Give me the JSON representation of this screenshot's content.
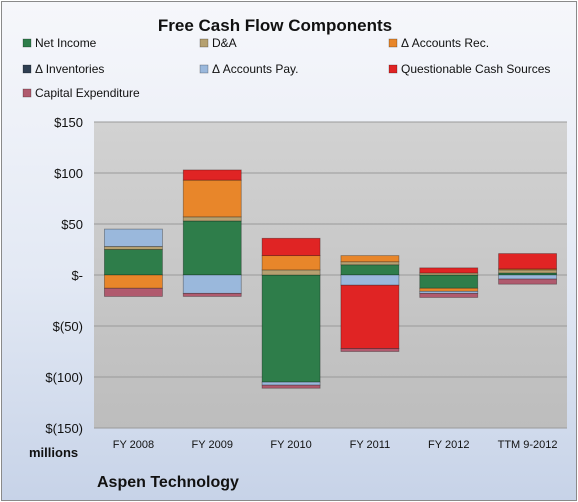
{
  "chart_data": {
    "type": "bar",
    "stacked": true,
    "title": "Free Cash Flow Components",
    "subtitle": "",
    "company": "Aspen Technology",
    "unit_label": "millions",
    "categories": [
      "FY 2008",
      "FY 2009",
      "FY 2010",
      "FY 2011",
      "FY 2012",
      "TTM 9-2012"
    ],
    "ylim": [
      -150,
      150
    ],
    "yticks": [
      150,
      100,
      50,
      0,
      -50,
      -100,
      -150
    ],
    "ytick_labels": [
      "$150",
      "$100",
      "$50",
      "$-",
      "$(50)",
      "$(100)",
      "$(150)"
    ],
    "grid": true,
    "legend_position": "top",
    "series": [
      {
        "name": "Net Income",
        "color": "#2e7d4a",
        "values": [
          25,
          53,
          -105,
          10,
          -13,
          2
        ]
      },
      {
        "name": "D&A",
        "color": "#b5a070",
        "values": [
          3,
          4,
          5,
          3,
          2,
          3
        ]
      },
      {
        "name": "Δ Accounts Rec.",
        "color": "#e8862a",
        "values": [
          -13,
          36,
          14,
          6,
          -3,
          1
        ]
      },
      {
        "name": "Δ Inventories",
        "color": "#2f3f52",
        "values": [
          0,
          0,
          0,
          0,
          0,
          0
        ]
      },
      {
        "name": "Δ Accounts Pay.",
        "color": "#9ab8dc",
        "values": [
          17,
          -18,
          -3,
          -10,
          -2,
          -4
        ]
      },
      {
        "name": "Questionable Cash Sources",
        "color": "#e02424",
        "values": [
          0,
          10,
          17,
          -62,
          5,
          15
        ]
      },
      {
        "name": "Capital Expenditure",
        "color": "#b05a6e",
        "values": [
          -8,
          -3,
          -3,
          -3,
          -4,
          -5
        ]
      }
    ]
  }
}
